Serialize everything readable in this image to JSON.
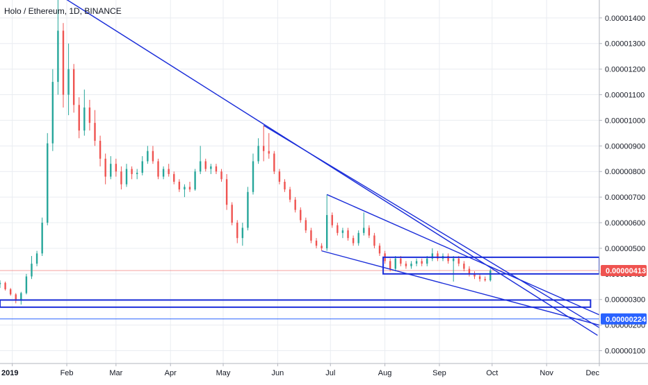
{
  "header": {
    "title": "Holo / Ethereum, 1D, BINANCE"
  },
  "chart_data": {
    "type": "candlestick",
    "title": "Holo / Ethereum, 1D, BINANCE",
    "symbol": "Holo / Ethereum",
    "interval": "1D",
    "exchange": "BINANCE",
    "x_tick_labels": [
      "2019",
      "Feb",
      "Mar",
      "Apr",
      "May",
      "Jun",
      "Jul",
      "Aug",
      "Sep",
      "Oct",
      "Nov",
      "Dec"
    ],
    "x_range": [
      "2018-12-25",
      "2019-12-01"
    ],
    "y_tick_values": [
      1e-06,
      2e-06,
      3e-06,
      4e-06,
      5e-06,
      6e-06,
      7e-06,
      8e-06,
      9e-06,
      1e-05,
      1.1e-05,
      1.2e-05,
      1.3e-05,
      1.4e-05
    ],
    "y_tick_labels": [
      "0.00000100",
      "0.00000200",
      "0.00000300",
      "0.00000400",
      "0.00000500",
      "0.00000600",
      "0.00000700",
      "0.00000800",
      "0.00000900",
      "0.00001000",
      "0.00001100",
      "0.00001200",
      "0.00001300",
      "0.00001400"
    ],
    "y_range": [
      5e-07,
      1.47e-05
    ],
    "grid": true,
    "candles_ohlc_key": [
      "date",
      "open",
      "high",
      "low",
      "close"
    ],
    "candles": [
      [
        "2018-12-25",
        3.6,
        3.75,
        3.45,
        3.65
      ],
      [
        "2018-12-28",
        3.65,
        3.7,
        3.35,
        3.4
      ],
      [
        "2018-12-31",
        3.4,
        3.45,
        3.15,
        3.2
      ],
      [
        "2019-01-03",
        3.2,
        3.25,
        2.85,
        2.95
      ],
      [
        "2019-01-06",
        2.95,
        3.3,
        2.8,
        3.25
      ],
      [
        "2019-01-09",
        3.25,
        4.0,
        3.2,
        3.9
      ],
      [
        "2019-01-12",
        3.9,
        4.7,
        3.8,
        4.4
      ],
      [
        "2019-01-15",
        4.4,
        4.9,
        4.3,
        4.8
      ],
      [
        "2019-01-18",
        4.8,
        6.2,
        4.7,
        6.0
      ],
      [
        "2019-01-21",
        6.0,
        9.5,
        5.9,
        9.1
      ],
      [
        "2019-01-24",
        9.1,
        12.0,
        8.8,
        11.5
      ],
      [
        "2019-01-27",
        11.5,
        14.8,
        11.0,
        13.5
      ],
      [
        "2019-01-30",
        13.5,
        13.8,
        10.5,
        11.0
      ],
      [
        "2019-02-02",
        11.0,
        13.0,
        10.2,
        12.0
      ],
      [
        "2019-02-05",
        12.0,
        12.2,
        10.3,
        10.6
      ],
      [
        "2019-02-08",
        10.6,
        10.9,
        9.3,
        9.6
      ],
      [
        "2019-02-11",
        9.6,
        11.2,
        9.4,
        10.5
      ],
      [
        "2019-02-14",
        10.5,
        10.8,
        9.6,
        9.9
      ],
      [
        "2019-02-17",
        9.9,
        10.4,
        9.0,
        9.2
      ],
      [
        "2019-02-20",
        9.2,
        9.4,
        8.2,
        8.5
      ],
      [
        "2019-02-23",
        8.5,
        8.7,
        7.5,
        7.8
      ],
      [
        "2019-02-26",
        7.8,
        8.6,
        7.7,
        8.3
      ],
      [
        "2019-03-01",
        8.3,
        8.5,
        7.8,
        8.0
      ],
      [
        "2019-03-04",
        8.0,
        8.2,
        7.3,
        7.5
      ],
      [
        "2019-03-07",
        7.5,
        8.3,
        7.4,
        8.1
      ],
      [
        "2019-03-10",
        8.1,
        8.2,
        7.7,
        7.9
      ],
      [
        "2019-03-13",
        7.9,
        8.1,
        7.7,
        7.95
      ],
      [
        "2019-03-16",
        7.95,
        8.6,
        7.85,
        8.4
      ],
      [
        "2019-03-19",
        8.4,
        9.0,
        8.3,
        8.8
      ],
      [
        "2019-03-22",
        8.8,
        9.0,
        8.3,
        8.4
      ],
      [
        "2019-03-25",
        8.4,
        8.5,
        7.7,
        7.8
      ],
      [
        "2019-03-28",
        7.8,
        8.2,
        7.7,
        8.1
      ],
      [
        "2019-03-31",
        8.1,
        8.3,
        7.8,
        7.9
      ],
      [
        "2019-04-03",
        7.9,
        8.0,
        7.5,
        7.6
      ],
      [
        "2019-04-06",
        7.6,
        7.7,
        7.2,
        7.3
      ],
      [
        "2019-04-09",
        7.3,
        7.5,
        7.0,
        7.4
      ],
      [
        "2019-04-12",
        7.4,
        7.6,
        7.2,
        7.3
      ],
      [
        "2019-04-15",
        7.3,
        8.1,
        7.25,
        8.0
      ],
      [
        "2019-04-18",
        8.0,
        9.0,
        7.9,
        8.4
      ],
      [
        "2019-04-21",
        8.4,
        8.5,
        8.0,
        8.1
      ],
      [
        "2019-04-24",
        8.1,
        8.3,
        7.9,
        8.2
      ],
      [
        "2019-04-27",
        8.2,
        8.3,
        7.9,
        8.0
      ],
      [
        "2019-04-30",
        8.0,
        8.1,
        7.6,
        7.7
      ],
      [
        "2019-05-03",
        7.7,
        7.9,
        6.5,
        6.7
      ],
      [
        "2019-05-06",
        6.7,
        6.8,
        5.9,
        6.0
      ],
      [
        "2019-05-09",
        6.0,
        6.1,
        5.2,
        5.4
      ],
      [
        "2019-05-12",
        5.4,
        6.0,
        5.1,
        5.8
      ],
      [
        "2019-05-15",
        5.8,
        7.4,
        5.7,
        7.2
      ],
      [
        "2019-05-18",
        7.2,
        8.7,
        7.1,
        8.4
      ],
      [
        "2019-05-21",
        8.4,
        9.3,
        8.3,
        9.0
      ],
      [
        "2019-05-24",
        9.0,
        9.8,
        8.4,
        8.8
      ],
      [
        "2019-05-27",
        8.8,
        9.5,
        8.5,
        8.7
      ],
      [
        "2019-05-30",
        8.7,
        8.8,
        7.9,
        8.0
      ],
      [
        "2019-06-02",
        8.0,
        8.1,
        7.5,
        7.6
      ],
      [
        "2019-06-05",
        7.6,
        7.7,
        7.2,
        7.3
      ],
      [
        "2019-06-08",
        7.3,
        7.4,
        6.8,
        6.9
      ],
      [
        "2019-06-11",
        6.9,
        7.0,
        6.4,
        6.5
      ],
      [
        "2019-06-14",
        6.5,
        6.6,
        6.0,
        6.1
      ],
      [
        "2019-06-17",
        6.1,
        6.2,
        5.6,
        5.7
      ],
      [
        "2019-06-20",
        5.7,
        5.8,
        5.2,
        5.3
      ],
      [
        "2019-06-23",
        5.3,
        5.4,
        5.0,
        5.1
      ],
      [
        "2019-06-26",
        5.1,
        5.2,
        4.9,
        5.0
      ],
      [
        "2019-06-29",
        5.0,
        7.1,
        4.9,
        6.3
      ],
      [
        "2019-07-02",
        6.3,
        6.4,
        5.8,
        5.9
      ],
      [
        "2019-07-05",
        5.9,
        6.0,
        5.5,
        5.6
      ],
      [
        "2019-07-08",
        5.6,
        5.8,
        5.4,
        5.7
      ],
      [
        "2019-07-11",
        5.7,
        5.8,
        5.3,
        5.4
      ],
      [
        "2019-07-14",
        5.4,
        5.5,
        5.1,
        5.2
      ],
      [
        "2019-07-17",
        5.2,
        5.7,
        5.1,
        5.6
      ],
      [
        "2019-07-20",
        5.6,
        6.4,
        5.5,
        5.8
      ],
      [
        "2019-07-23",
        5.8,
        5.9,
        5.4,
        5.5
      ],
      [
        "2019-07-26",
        5.5,
        5.6,
        5.0,
        5.1
      ],
      [
        "2019-07-29",
        5.1,
        5.2,
        4.7,
        4.8
      ],
      [
        "2019-08-01",
        4.8,
        4.9,
        4.4,
        4.5
      ],
      [
        "2019-08-04",
        4.5,
        4.6,
        4.1,
        4.2
      ],
      [
        "2019-08-07",
        4.2,
        4.7,
        4.1,
        4.6
      ],
      [
        "2019-08-10",
        4.6,
        4.7,
        4.3,
        4.4
      ],
      [
        "2019-08-13",
        4.4,
        4.5,
        4.2,
        4.3
      ],
      [
        "2019-08-16",
        4.3,
        4.5,
        4.2,
        4.4
      ],
      [
        "2019-08-19",
        4.4,
        4.6,
        4.3,
        4.5
      ],
      [
        "2019-08-22",
        4.5,
        4.6,
        4.3,
        4.4
      ],
      [
        "2019-08-25",
        4.4,
        4.7,
        4.3,
        4.6
      ],
      [
        "2019-08-28",
        4.6,
        5.0,
        4.5,
        4.8
      ],
      [
        "2019-08-31",
        4.8,
        4.9,
        4.5,
        4.6
      ],
      [
        "2019-09-03",
        4.6,
        4.8,
        4.5,
        4.7
      ],
      [
        "2019-09-06",
        4.7,
        4.8,
        4.4,
        4.5
      ],
      [
        "2019-09-09",
        4.5,
        4.7,
        3.7,
        4.6
      ],
      [
        "2019-09-12",
        4.6,
        4.7,
        4.3,
        4.4
      ],
      [
        "2019-09-15",
        4.4,
        4.5,
        4.1,
        4.2
      ],
      [
        "2019-09-18",
        4.2,
        4.3,
        3.9,
        4.0
      ],
      [
        "2019-09-21",
        4.0,
        4.1,
        3.8,
        3.9
      ],
      [
        "2019-09-24",
        3.9,
        4.0,
        3.7,
        3.8
      ],
      [
        "2019-09-27",
        3.8,
        3.9,
        3.7,
        3.75
      ],
      [
        "2019-09-30",
        3.75,
        4.2,
        3.7,
        4.13
      ]
    ],
    "current_price": "0.00000413",
    "current_price_color": "#ef5350",
    "marked_level": "0.00000224",
    "marked_level_color": "#2962ff",
    "trendlines": [
      {
        "from": [
          "2019-01-30",
          14.8
        ],
        "to": [
          "2019-11-30",
          1.6
        ]
      },
      {
        "from": [
          "2019-05-24",
          9.8
        ],
        "to": [
          "2019-12-01",
          1.9
        ]
      },
      {
        "from": [
          "2019-06-29",
          7.1
        ],
        "to": [
          "2019-12-01",
          2.4
        ]
      },
      {
        "from": [
          "2019-06-26",
          4.9
        ],
        "to": [
          "2019-12-01",
          2.0
        ]
      }
    ],
    "rectangles": [
      {
        "from": [
          "2019-07-31",
          4.0
        ],
        "to": [
          "2019-12-01",
          4.65
        ]
      },
      {
        "from": [
          "2018-12-25",
          2.7
        ],
        "to": [
          "2019-11-26",
          2.98
        ]
      }
    ],
    "colors": {
      "up": "#26a69a",
      "down": "#ef5350",
      "drawing": "#1a2dd9",
      "grid": "#e9ecf1",
      "axis_text": "#131722"
    }
  }
}
